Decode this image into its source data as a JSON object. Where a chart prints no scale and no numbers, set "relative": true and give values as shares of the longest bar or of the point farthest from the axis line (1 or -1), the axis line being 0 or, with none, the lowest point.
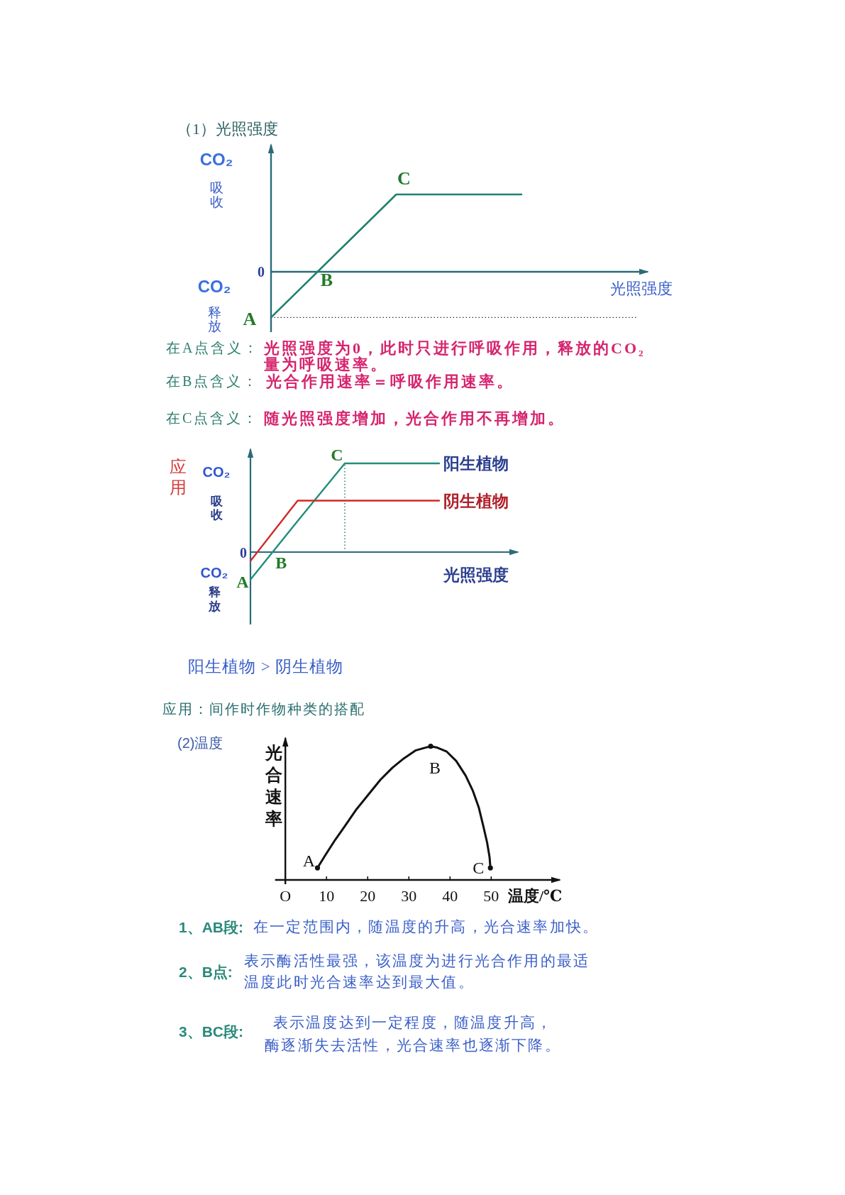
{
  "chart_data": [
    {
      "type": "line",
      "title": "（1）光照强度",
      "xlabel": "光照强度",
      "relative": true,
      "categories": [
        null,
        null,
        null
      ],
      "values": [
        -0.59,
        1,
        1
      ],
      "color": "#1f8070",
      "ref_lines": [
        {
          "axis": "y",
          "value": 0,
          "color": "#2a6b78"
        },
        {
          "axis": "y",
          "value": -0.59,
          "line_style": "dotted",
          "color": "#333333"
        }
      ],
      "annotations": [
        "CO₂吸收",
        "CO₂释放",
        "0",
        "A",
        "B",
        "C",
        "在A点含义：",
        "光照强度为0，此时只进行呼吸作用，释放的CO₂量为呼吸速率。",
        "在B点含义：",
        "光合作用速率＝呼吸作用速率。",
        "在C点含义：",
        "随光照强度增加，光合作用不再增加。"
      ]
    },
    {
      "type": "line",
      "xlabel": "光照强度",
      "relative": true,
      "categories": [
        null,
        null,
        null,
        null,
        null
      ],
      "series": [
        {
          "name": "阳生植物",
          "color": "#1f8f7a",
          "values": [
            -0.31,
            0.35,
            1,
            1,
            1
          ]
        },
        {
          "name": "阴生植物",
          "color": "#d02a2a",
          "values": [
            -0.1,
            0.58,
            0.58,
            0.58,
            0.58
          ]
        }
      ],
      "ref_lines": [
        {
          "axis": "y",
          "value": 0,
          "color": "#2a6b78"
        }
      ],
      "annotations": [
        "应用",
        "CO₂吸收",
        "CO₂释放",
        "0",
        "A",
        "B",
        "C",
        "阳生植物 > 阴生植物",
        "应用：间作时作物种类的搭配"
      ]
    },
    {
      "type": "line",
      "title": "(2)温度",
      "xlabel": "温度/℃",
      "ylabel": "光合速率",
      "relative": true,
      "xlim": [
        -2.5,
        67
      ],
      "xticks": [
        {
          "value": 0,
          "label": "O"
        },
        10,
        20,
        30,
        40,
        50
      ],
      "series": [
        {
          "color": "#111111",
          "x": [
            7.8,
            9.8,
            12.1,
            14.4,
            17.3,
            20.2,
            23.1,
            26.0,
            28.8,
            31.7,
            34.0,
            35.3,
            36.9,
            39.2,
            41.5,
            43.8,
            45.5,
            47.0,
            48.1,
            49.0,
            49.6,
            49.8
          ],
          "values": [
            0.09,
            0.19,
            0.3,
            0.4,
            0.53,
            0.64,
            0.75,
            0.84,
            0.91,
            0.97,
            0.99,
            1,
            0.99,
            0.96,
            0.89,
            0.78,
            0.67,
            0.54,
            0.4,
            0.28,
            0.17,
            0.09
          ]
        },
        {
          "type": "scatter",
          "color": "#111111",
          "marker": "circle",
          "x": [
            7.8,
            35.3,
            49.8
          ],
          "values": [
            0.09,
            1,
            0.09
          ]
        }
      ],
      "annotations": [
        {
          "text": "A",
          "x": 7.8,
          "y": 0.09
        },
        {
          "text": "B",
          "x": 35.3,
          "y": 1
        },
        {
          "text": "C",
          "x": 49.8,
          "y": 0.09
        },
        "1、AB段:",
        "在一定范围内，随温度的升高，光合速率加快。",
        "2、B点:",
        "表示酶活性最强，该温度为进行光合作用的最适温度此时光合速率达到最大值。",
        "3、BC段:",
        "表示温度达到一定程度，随温度升高，酶逐渐失去活性，光合速率也逐渐下降。"
      ]
    }
  ]
}
